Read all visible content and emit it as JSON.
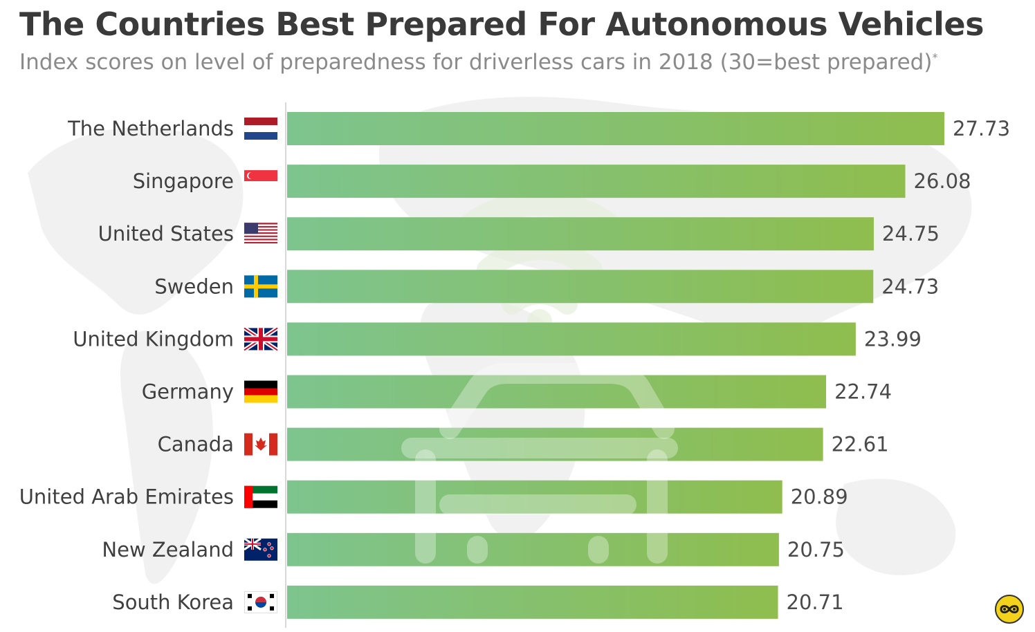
{
  "title": "The Countries Best Prepared For Autonomous Vehicles",
  "subtitle": "Index scores on level of preparedness for driverless cars in 2018 (30=best prepared)",
  "subtitle_mark": "*",
  "colors": {
    "bar_start": "#7dc48e",
    "bar_end": "#8fbd4e",
    "title": "#3a3a3a",
    "subtitle": "#8a8a8a"
  },
  "chart_data": {
    "type": "bar",
    "orientation": "horizontal",
    "categories": [
      "The Netherlands",
      "Singapore",
      "United States",
      "Sweden",
      "United Kingdom",
      "Germany",
      "Canada",
      "United Arab Emirates",
      "New Zealand",
      "South Korea"
    ],
    "values": [
      27.73,
      26.08,
      24.75,
      24.73,
      23.99,
      22.74,
      22.61,
      20.89,
      20.75,
      20.71
    ],
    "value_labels": [
      "27.73",
      "26.08",
      "24.75",
      "24.73",
      "23.99",
      "22.74",
      "22.61",
      "20.89",
      "20.75",
      "20.71"
    ],
    "flags": [
      "netherlands-flag",
      "singapore-flag",
      "united-states-flag",
      "sweden-flag",
      "united-kingdom-flag",
      "germany-flag",
      "canada-flag",
      "uae-flag",
      "new-zealand-flag",
      "south-korea-flag"
    ],
    "xlim": [
      0,
      30
    ],
    "grid": false,
    "legend": "none"
  },
  "background_icons": [
    "world-map-icon",
    "car-icon",
    "wifi-icon"
  ],
  "logo_icon": "infinity-eye-logo-icon"
}
